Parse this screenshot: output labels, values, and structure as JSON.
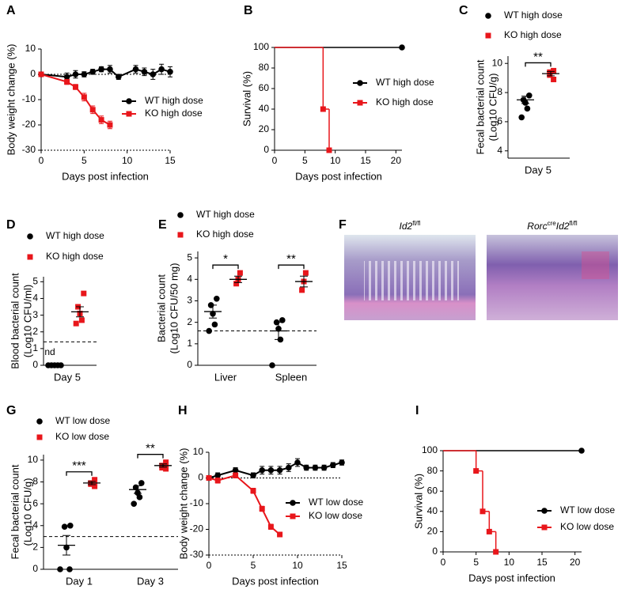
{
  "chart_data": [
    {
      "panel": "A",
      "type": "line",
      "xlabel": "Days post infection",
      "ylabel": [
        "Body weight change (%)"
      ],
      "xlim": [
        0,
        15
      ],
      "xticks": [
        0,
        5,
        10,
        15
      ],
      "ylim": [
        -30,
        10
      ],
      "yticks": [
        -30,
        -20,
        -10,
        0,
        10
      ],
      "refline": 0,
      "series": [
        {
          "name": "WT high dose",
          "color": "#000000",
          "marker": "circle",
          "x": [
            0,
            3,
            4,
            5,
            6,
            7,
            8,
            9,
            11,
            12,
            13,
            14,
            15
          ],
          "values": [
            0,
            -1,
            0,
            0,
            1,
            2,
            2,
            -1,
            2,
            1,
            0,
            2,
            1
          ],
          "errors": [
            0.5,
            1.5,
            1.5,
            1,
            1,
            1,
            1.5,
            1,
            1.5,
            1.5,
            2,
            2,
            2
          ]
        },
        {
          "name": "KO high dose",
          "color": "#e8161b",
          "marker": "square",
          "x": [
            0,
            3,
            4,
            5,
            6,
            7,
            8
          ],
          "values": [
            0,
            -3,
            -5,
            -9,
            -14,
            -18,
            -20
          ],
          "errors": [
            0.5,
            1,
            1,
            1.5,
            1.5,
            1.5,
            1.5
          ]
        }
      ]
    },
    {
      "panel": "B",
      "type": "step",
      "xlabel": "Days post infection",
      "ylabel": [
        "Survival (%)"
      ],
      "xlim": [
        0,
        21
      ],
      "xticks": [
        0,
        5,
        10,
        15,
        20
      ],
      "ylim": [
        0,
        100
      ],
      "yticks": [
        0,
        20,
        40,
        60,
        80,
        100
      ],
      "series": [
        {
          "name": "WT high dose",
          "color": "#000000",
          "marker": "circle",
          "x": [
            0,
            21
          ],
          "values": [
            100,
            100
          ]
        },
        {
          "name": "KO high dose",
          "color": "#e8161b",
          "marker": "square",
          "x": [
            0,
            8,
            9
          ],
          "values": [
            100,
            40,
            0
          ]
        }
      ]
    },
    {
      "panel": "C",
      "type": "dot",
      "ylabel": [
        "Fecal bacterial count",
        "(Log10 CFU/g)"
      ],
      "categories": [
        "Day 5"
      ],
      "ylim": [
        3.5,
        10.5
      ],
      "yticks": [
        4,
        6,
        8,
        10
      ],
      "significance": [
        "**"
      ],
      "series": [
        {
          "name": "WT high dose",
          "color": "#000000",
          "marker": "circle",
          "values": [
            [
              7.8,
              7.5,
              7.3,
              6.9,
              6.3
            ]
          ],
          "means": [
            7.5
          ],
          "errors": [
            0.25
          ]
        },
        {
          "name": "KO high dose",
          "color": "#e8161b",
          "marker": "square",
          "values": [
            [
              9.5,
              9.2,
              9.4,
              8.9
            ]
          ],
          "means": [
            9.3
          ],
          "errors": [
            0.15
          ]
        }
      ]
    },
    {
      "panel": "D",
      "type": "dot",
      "ylabel": [
        "Blood bacterial count",
        "(Log10 CFU/ml)"
      ],
      "categories": [
        "Day 5"
      ],
      "ylim": [
        0,
        5.3
      ],
      "yticks": [
        0,
        1,
        2,
        3,
        4,
        5
      ],
      "limit": 1.4,
      "annotation": "nd",
      "series": [
        {
          "name": "WT high dose",
          "color": "#000000",
          "marker": "circle",
          "values": [
            [
              0,
              0,
              0,
              0,
              0
            ]
          ],
          "means": [
            0
          ],
          "errors": [
            0
          ]
        },
        {
          "name": "KO high dose",
          "color": "#e8161b",
          "marker": "square",
          "values": [
            [
              4.3,
              3.5,
              3.1,
              2.7,
              2.5
            ]
          ],
          "means": [
            3.2
          ],
          "errors": [
            0.3
          ]
        }
      ]
    },
    {
      "panel": "E",
      "type": "dot",
      "ylabel": [
        "Bacterial count",
        "(Log10 CFU/50 mg)"
      ],
      "categories": [
        "Liver",
        "Spleen"
      ],
      "ylim": [
        0,
        5.3
      ],
      "yticks": [
        0,
        1,
        2,
        3,
        4,
        5
      ],
      "limit": 1.6,
      "significance": [
        "*",
        "**"
      ],
      "series": [
        {
          "name": "WT high dose",
          "color": "#000000",
          "marker": "circle",
          "values": [
            [
              3.1,
              2.8,
              2.4,
              1.9,
              1.6
            ],
            [
              2.1,
              2.0,
              1.7,
              1.2,
              0
            ]
          ],
          "means": [
            2.5,
            1.6
          ],
          "errors": [
            0.3,
            0.4
          ]
        },
        {
          "name": "KO high dose",
          "color": "#e8161b",
          "marker": "square",
          "values": [
            [
              4.3,
              4.0,
              3.8
            ],
            [
              4.3,
              3.9,
              3.5
            ]
          ],
          "means": [
            4.0,
            3.9
          ],
          "errors": [
            0.15,
            0.25
          ]
        }
      ]
    },
    {
      "panel": "G",
      "type": "dot",
      "ylabel": [
        "Fecal bacterial count",
        "(Log10 CFU/g)"
      ],
      "categories": [
        "Day 1",
        "Day 3"
      ],
      "ylim": [
        0,
        10.5
      ],
      "yticks": [
        0,
        2,
        4,
        6,
        8,
        10
      ],
      "limit": 3,
      "significance": [
        "***",
        "**"
      ],
      "series": [
        {
          "name": "WT low dose",
          "color": "#000000",
          "marker": "circle",
          "values": [
            [
              4.0,
              3.9,
              2.0,
              0,
              0
            ],
            [
              7.9,
              7.5,
              7.0,
              6.6,
              6.0
            ]
          ],
          "means": [
            2.2,
            7.3
          ],
          "errors": [
            0.9,
            0.35
          ]
        },
        {
          "name": "KO low dose",
          "color": "#e8161b",
          "marker": "square",
          "values": [
            [
              8.2,
              7.9,
              7.8,
              7.6
            ],
            [
              9.8,
              9.5,
              9.3,
              9.2
            ]
          ],
          "means": [
            7.9,
            9.5
          ],
          "errors": [
            0.15,
            0.15
          ]
        }
      ]
    },
    {
      "panel": "H",
      "type": "line",
      "xlabel": "Days post infection",
      "ylabel": [
        "Body weight change (%)"
      ],
      "xlim": [
        0,
        15
      ],
      "xticks": [
        0,
        5,
        10,
        15
      ],
      "ylim": [
        -30,
        10
      ],
      "yticks": [
        -30,
        -20,
        -10,
        0,
        10
      ],
      "refline": 0,
      "series": [
        {
          "name": "WT low dose",
          "color": "#000000",
          "marker": "circle",
          "x": [
            0,
            1,
            3,
            5,
            6,
            7,
            8,
            9,
            10,
            11,
            12,
            13,
            14,
            15
          ],
          "values": [
            0,
            1,
            3,
            1,
            3,
            3,
            3,
            4,
            6,
            4,
            4,
            4,
            5,
            6
          ],
          "errors": [
            0.5,
            1,
            1,
            1,
            1.5,
            1.5,
            1.5,
            1.5,
            1.5,
            1,
            1,
            1,
            1,
            1
          ]
        },
        {
          "name": "KO low dose",
          "color": "#e8161b",
          "marker": "square",
          "x": [
            0,
            1,
            3,
            5,
            6,
            7,
            8
          ],
          "values": [
            0,
            -1,
            1,
            -5,
            -12,
            -19,
            -22
          ],
          "errors": [
            0.5,
            1,
            1,
            1,
            1,
            1,
            0.8
          ]
        }
      ]
    },
    {
      "panel": "I",
      "type": "step",
      "xlabel": "Days post infection",
      "ylabel": [
        "Survival (%)"
      ],
      "xlim": [
        0,
        21
      ],
      "xticks": [
        0,
        5,
        10,
        15,
        20
      ],
      "ylim": [
        0,
        100
      ],
      "yticks": [
        0,
        20,
        40,
        60,
        80,
        100
      ],
      "series": [
        {
          "name": "WT low dose",
          "color": "#000000",
          "marker": "circle",
          "x": [
            0,
            21
          ],
          "values": [
            100,
            100
          ]
        },
        {
          "name": "KO low dose",
          "color": "#e8161b",
          "marker": "square",
          "x": [
            0,
            5,
            6,
            7,
            8
          ],
          "values": [
            100,
            80,
            40,
            20,
            0
          ]
        }
      ]
    }
  ],
  "histology": {
    "panel": "F",
    "images": [
      {
        "label": "Id2",
        "sup": "fl/fl"
      },
      {
        "pre": "Rorc",
        "pre_sup": "cre",
        "label": "Id2",
        "sup": "fl/fl"
      }
    ]
  }
}
